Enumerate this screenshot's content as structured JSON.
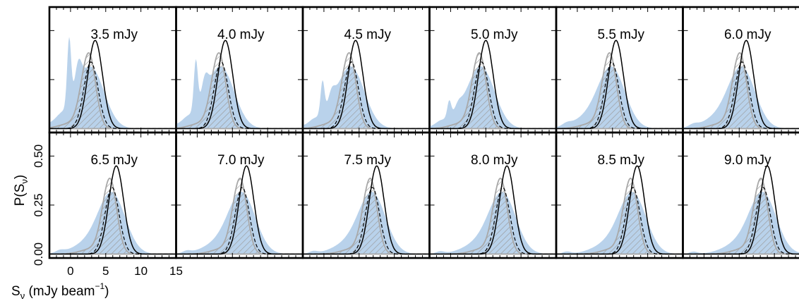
{
  "figure": {
    "ylabel": "P(S_ν)",
    "ylabel_main": "P(S",
    "ylabel_sub": "ν",
    "ylabel_close": ")",
    "xlabel_main": "S",
    "xlabel_sub": "ν",
    "xlabel_mid": " (mJy beam",
    "xlabel_sup": "−1",
    "xlabel_close": ")",
    "colors": {
      "filled": "#aac8e6",
      "hatched_outline": "#a8a8a8",
      "curve": "#000000"
    }
  },
  "chart_data": {
    "type": "area",
    "layout": "2x6 small multiples",
    "xlabel": "S_ν (mJy beam^−1)",
    "ylabel": "P(S_ν)",
    "xlim": [
      -3,
      15
    ],
    "ylim": [
      -0.02,
      0.62
    ],
    "xticks": [
      0,
      5,
      10,
      15
    ],
    "xtick_labels": [
      "0",
      "5",
      "10",
      "15"
    ],
    "yticks": [
      0.0,
      0.25,
      0.5
    ],
    "ytick_labels": [
      "0.00",
      "0.25",
      "0.50"
    ],
    "panels": [
      {
        "label": "3.5 mJy",
        "flux": 3.5,
        "peak_model": 0.45,
        "peak_hatched": 0.38
      },
      {
        "label": "4.0 mJy",
        "flux": 4.0,
        "peak_model": 0.45,
        "peak_hatched": 0.38
      },
      {
        "label": "4.5 mJy",
        "flux": 4.5,
        "peak_model": 0.45,
        "peak_hatched": 0.38
      },
      {
        "label": "5.0 mJy",
        "flux": 5.0,
        "peak_model": 0.45,
        "peak_hatched": 0.38
      },
      {
        "label": "5.5 mJy",
        "flux": 5.5,
        "peak_model": 0.45,
        "peak_hatched": 0.38
      },
      {
        "label": "6.0 mJy",
        "flux": 6.0,
        "peak_model": 0.45,
        "peak_hatched": 0.38
      },
      {
        "label": "6.5 mJy",
        "flux": 6.5,
        "peak_model": 0.45,
        "peak_hatched": 0.38
      },
      {
        "label": "7.0 mJy",
        "flux": 7.0,
        "peak_model": 0.45,
        "peak_hatched": 0.38
      },
      {
        "label": "7.5 mJy",
        "flux": 7.5,
        "peak_model": 0.45,
        "peak_hatched": 0.38
      },
      {
        "label": "8.0 mJy",
        "flux": 8.0,
        "peak_model": 0.45,
        "peak_hatched": 0.38
      },
      {
        "label": "8.5 mJy",
        "flux": 8.5,
        "peak_model": 0.45,
        "peak_hatched": 0.38
      },
      {
        "label": "9.0 mJy",
        "flux": 9.0,
        "peak_model": 0.45,
        "peak_hatched": 0.38
      }
    ],
    "series": [
      {
        "style": "filled light-blue distribution"
      },
      {
        "style": "grey hatched outlined distribution"
      },
      {
        "style": "solid black curve"
      },
      {
        "style": "dashed black curve"
      }
    ],
    "grid": false,
    "legend": "none"
  }
}
